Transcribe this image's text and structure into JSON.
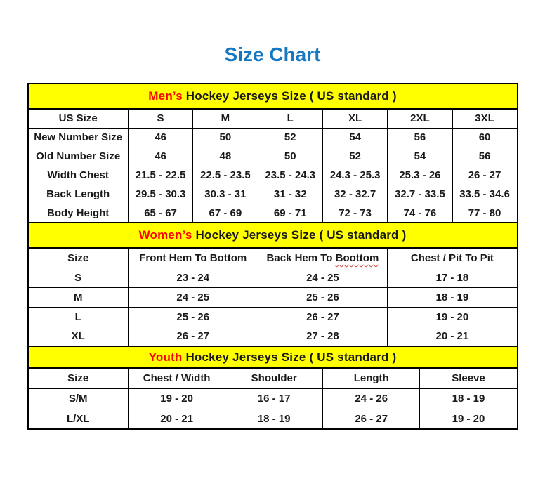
{
  "page": {
    "title": "Size Chart",
    "title_color": "#1778C2"
  },
  "colors": {
    "band_bg": "#FFFF00",
    "accent_red": "#FF0000",
    "border": "#000000",
    "squiggle": "#D04437"
  },
  "tables": [
    {
      "id": "mens",
      "band": {
        "highlight": "Men’s",
        "rest": " Hockey Jerseys Size ( US standard )"
      },
      "columns": [
        "US Size",
        "S",
        "M",
        "L",
        "XL",
        "2XL",
        "3XL"
      ],
      "rows": [
        [
          "New Number Size",
          "46",
          "50",
          "52",
          "54",
          "56",
          "60"
        ],
        [
          "Old Number Size",
          "46",
          "48",
          "50",
          "52",
          "54",
          "56"
        ],
        [
          "Width Chest",
          "21.5 - 22.5",
          "22.5 - 23.5",
          "23.5 - 24.3",
          "24.3 - 25.3",
          "25.3 - 26",
          "26 - 27"
        ],
        [
          "Back Length",
          "29.5 - 30.3",
          "30.3 - 31",
          "31 - 32",
          "32 - 32.7",
          "32.7 - 33.5",
          "33.5 - 34.6"
        ],
        [
          "Body Height",
          "65 - 67",
          "67 - 69",
          "69 - 71",
          "72 - 73",
          "74 - 76",
          "77 - 80"
        ]
      ]
    },
    {
      "id": "womens",
      "band": {
        "highlight": "Women’s",
        "rest": " Hockey Jerseys Size ( US standard )"
      },
      "columns": [
        "Size",
        "Front Hem To Bottom",
        {
          "text": "Back Hem To ",
          "misspelled": "Boottom"
        },
        "Chest / Pit To Pit"
      ],
      "rows": [
        [
          "S",
          "23 - 24",
          "24 - 25",
          "17 - 18"
        ],
        [
          "M",
          "24 - 25",
          "25 - 26",
          "18 - 19"
        ],
        [
          "L",
          "25 - 26",
          "26 - 27",
          "19 - 20"
        ],
        [
          "XL",
          "26 - 27",
          "27 - 28",
          "20 - 21"
        ]
      ]
    },
    {
      "id": "youth",
      "band": {
        "highlight": "Youth",
        "rest": " Hockey Jerseys Size ( US standard )"
      },
      "columns": [
        "Size",
        "Chest / Width",
        "Shoulder",
        "Length",
        "Sleeve"
      ],
      "rows": [
        [
          "S/M",
          "19 - 20",
          "16 - 17",
          "24 - 26",
          "18 - 19"
        ],
        [
          "L/XL",
          "20 - 21",
          "18 - 19",
          "26 - 27",
          "19 - 20"
        ]
      ]
    }
  ]
}
